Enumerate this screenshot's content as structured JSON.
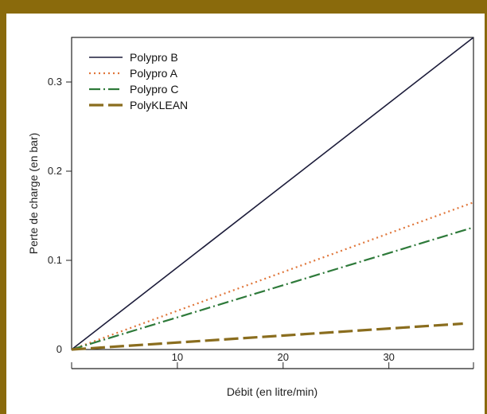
{
  "frame": {
    "band_color": "#8a6a0c"
  },
  "chart_data": {
    "type": "line",
    "title": "",
    "xlabel": "Débit (en litre/min)",
    "ylabel": "Perte de charge (en bar)",
    "xlim": [
      0,
      38
    ],
    "ylim": [
      0,
      0.35
    ],
    "xticks": [
      10,
      20,
      30
    ],
    "yticks": [
      0,
      0.1,
      0.2,
      0.3
    ],
    "xtick_labels": [
      "10",
      "20",
      "30"
    ],
    "ytick_labels": [
      "0",
      "0.1",
      "0.2",
      "0.3"
    ],
    "grid": false,
    "legend_position": "top-left",
    "series": [
      {
        "name": "Polypro B",
        "color": "#1c1c3a",
        "style": "solid",
        "x": [
          0,
          38
        ],
        "y": [
          0,
          0.35
        ]
      },
      {
        "name": "Polypro A",
        "color": "#e0763a",
        "style": "dotted",
        "x": [
          0,
          38
        ],
        "y": [
          0,
          0.165
        ]
      },
      {
        "name": "Polypro C",
        "color": "#2e7a3a",
        "style": "dashdot",
        "x": [
          0,
          38
        ],
        "y": [
          0,
          0.137
        ]
      },
      {
        "name": "PolyKLEAN",
        "color": "#8a6d1e",
        "style": "dashed",
        "x": [
          0,
          37
        ],
        "y": [
          0,
          0.029
        ]
      }
    ]
  }
}
